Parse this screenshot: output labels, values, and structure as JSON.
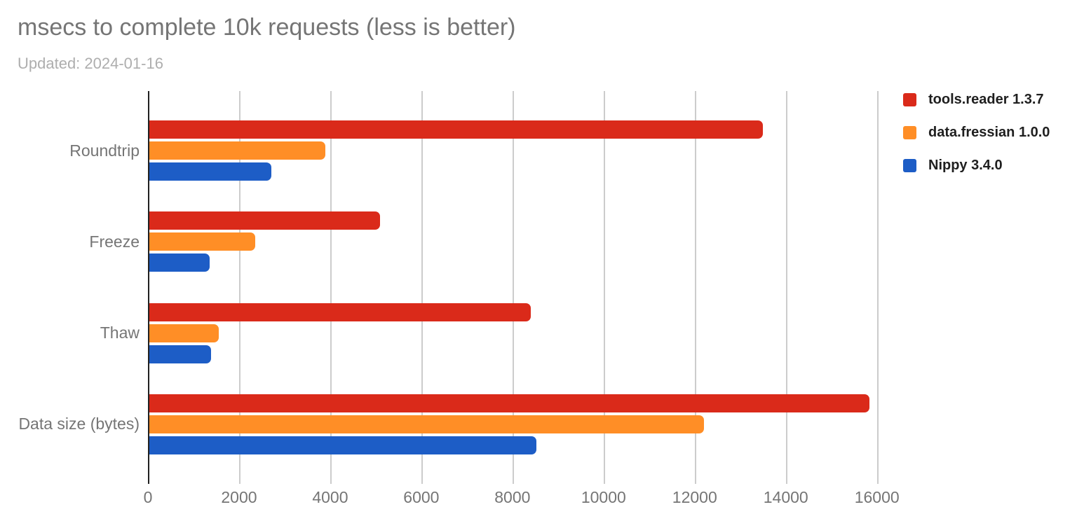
{
  "header": {
    "title": "msecs to complete 10k requests (less is better)",
    "subtitle": "Updated: 2024-01-16"
  },
  "chart_data": {
    "type": "bar",
    "orientation": "horizontal",
    "title": "msecs to complete 10k requests (less is better)",
    "subtitle": "Updated: 2024-01-16",
    "categories": [
      "Roundtrip",
      "Freeze",
      "Thaw",
      "Data size (bytes)"
    ],
    "series": [
      {
        "name": "tools.reader 1.3.7",
        "color": "#da2a1a",
        "values": [
          13500,
          5100,
          8400,
          15840
        ]
      },
      {
        "name": "data.fressian 1.0.0",
        "color": "#ff8e26",
        "values": [
          3900,
          2350,
          1560,
          12200
        ]
      },
      {
        "name": "Nippy 3.4.0",
        "color": "#1d5dc6",
        "values": [
          2710,
          1350,
          1390,
          8520
        ]
      }
    ],
    "x_ticks": [
      0,
      2000,
      4000,
      6000,
      8000,
      10000,
      12000,
      14000,
      16000
    ],
    "xlim": [
      0,
      16220
    ],
    "grid": true,
    "legend_position": "top-right",
    "colors": {
      "title": "#757575",
      "subtitle": "#aeaeae",
      "axis_line": "#212121",
      "gridline": "#cccccc",
      "tick_label": "#757575",
      "category_label": "#757575",
      "legend_text": "#1f1f1f"
    }
  }
}
